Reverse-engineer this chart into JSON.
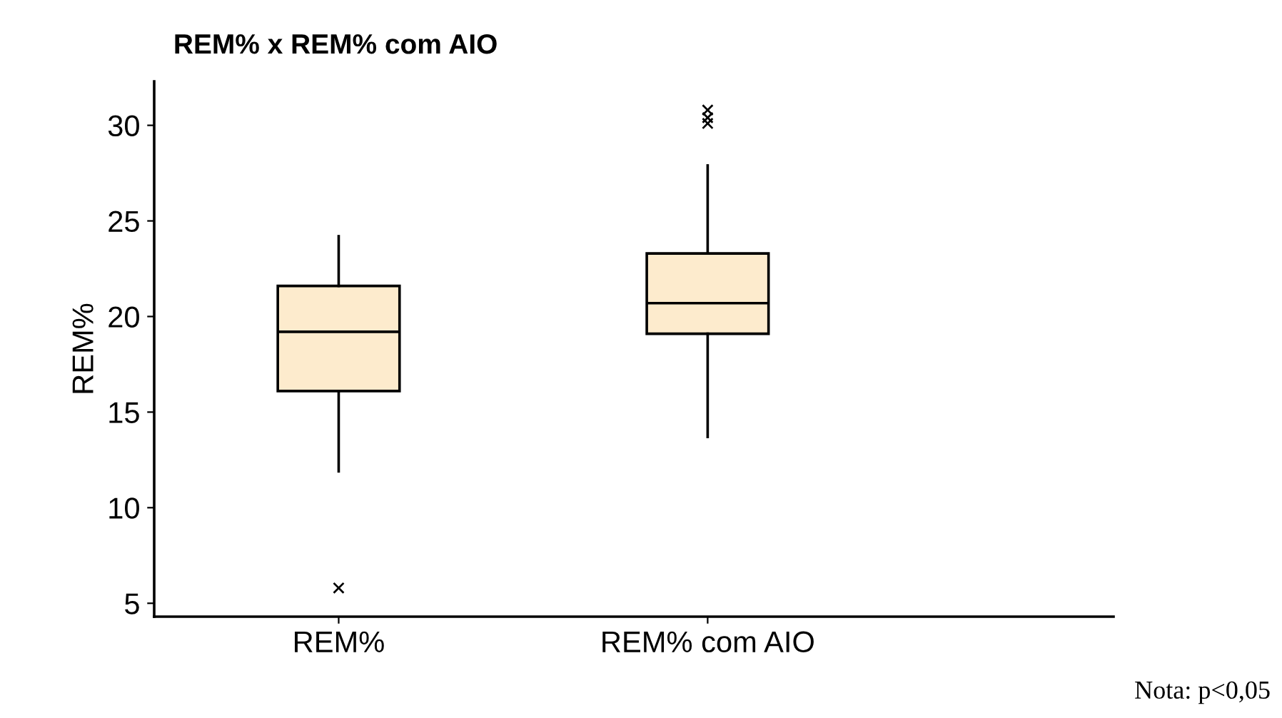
{
  "chart_data": {
    "type": "box",
    "title": "REM% x REM% com AIO",
    "ylabel": "REM%",
    "categories": [
      "REM%",
      "REM% com AIO"
    ],
    "boxes": [
      {
        "low": 11.9,
        "q1": 16.1,
        "median": 19.2,
        "q3": 21.6,
        "high": 24.2,
        "outliers": [
          5.8
        ]
      },
      {
        "low": 13.7,
        "q1": 19.1,
        "median": 20.7,
        "q3": 23.3,
        "high": 27.9,
        "outliers": [
          30.1,
          30.4,
          30.8
        ]
      }
    ],
    "color": "#fdebcd",
    "marker": "cross",
    "ylim": [
      4.3,
      32.3
    ],
    "yticks": [
      5,
      10,
      15,
      20,
      25,
      30
    ],
    "grid": false,
    "legend": false,
    "annotations": [
      "Nota: p<0,05"
    ]
  }
}
